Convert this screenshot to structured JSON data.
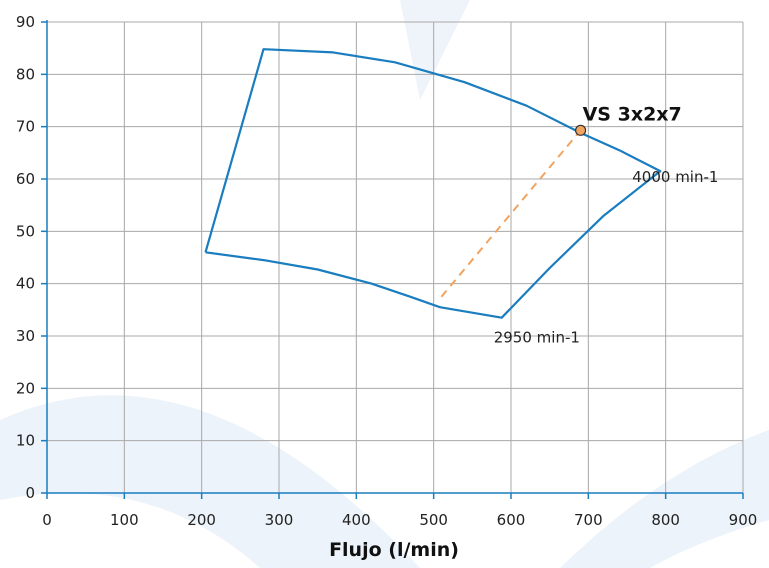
{
  "chart_data": {
    "type": "line",
    "title": "",
    "xlabel": "Flujo  (l/min)",
    "ylabel": "",
    "xlim": [
      0,
      900
    ],
    "ylim": [
      0,
      90
    ],
    "x_ticks": [
      0,
      100,
      200,
      300,
      400,
      500,
      600,
      700,
      800,
      900
    ],
    "y_ticks": [
      0,
      10,
      20,
      30,
      40,
      50,
      60,
      70,
      80,
      90
    ],
    "grid": true,
    "series": [
      {
        "name": "",
        "color": "#1a7dbf",
        "style": "solid",
        "closed": true,
        "points": [
          [
            205,
            46
          ],
          [
            280,
            44.5
          ],
          [
            350,
            42.7
          ],
          [
            420,
            40
          ],
          [
            470,
            37.5
          ],
          [
            508,
            35.5
          ],
          [
            588,
            33.5
          ],
          [
            650,
            43
          ],
          [
            720,
            53
          ],
          [
            793,
            61.5
          ],
          [
            740,
            65.5
          ],
          [
            690,
            68.8
          ],
          [
            620,
            74
          ],
          [
            540,
            78.5
          ],
          [
            450,
            82.3
          ],
          [
            370,
            84.2
          ],
          [
            280,
            84.8
          ],
          [
            205,
            46
          ]
        ]
      },
      {
        "name": "",
        "color": "#f0a460",
        "style": "dashed",
        "closed": false,
        "points": [
          [
            510,
            37.5
          ],
          [
            690,
            69.3
          ]
        ]
      }
    ],
    "markers": [
      {
        "x": 690,
        "y": 69.3,
        "label": "VS 3x2x7",
        "color": "#f0a460"
      }
    ],
    "annotations": [
      {
        "text": "4000 min-1",
        "x": 793,
        "y": 61.5
      },
      {
        "text": "2950 min-1",
        "x": 588,
        "y": 33.5
      }
    ],
    "colors": {
      "axis": "#1a7dbf",
      "grid": "#a8a8a8",
      "envelope": "#1a7dbf",
      "system": "#f0a460",
      "watermark": "#dfe9f5"
    }
  }
}
